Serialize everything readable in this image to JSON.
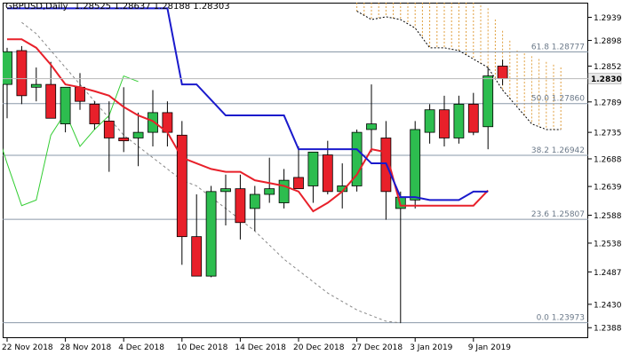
{
  "header": {
    "symbol": "GBPUSD,Daily",
    "ohlc": "1.28525 1.28637 1.28188 1.28303"
  },
  "chart_data": {
    "type": "candlestick",
    "symbol": "GBPUSD",
    "timeframe": "Daily",
    "ylim": [
      1.237,
      1.2965
    ],
    "current_price": 1.28303,
    "y_ticks": [
      1.2939,
      1.2898,
      1.28525,
      1.2789,
      1.2735,
      1.2688,
      1.2639,
      1.2588,
      1.25385,
      1.24875,
      1.243,
      1.23885
    ],
    "x_labels": [
      {
        "label": "22 Nov 2018",
        "index": 0
      },
      {
        "label": "28 Nov 2018",
        "index": 4
      },
      {
        "label": "4 Dec 2018",
        "index": 8
      },
      {
        "label": "10 Dec 2018",
        "index": 12
      },
      {
        "label": "14 Dec 2018",
        "index": 16
      },
      {
        "label": "20 Dec 2018",
        "index": 20
      },
      {
        "label": "27 Dec 2018",
        "index": 24
      },
      {
        "label": "3 Jan 2019",
        "index": 28
      },
      {
        "label": "9 Jan 2019",
        "index": 32
      }
    ],
    "fib_levels": [
      {
        "label": "61.8 1.28777",
        "value": 1.28777
      },
      {
        "label": "50.0 1.27860",
        "value": 1.2786
      },
      {
        "label": "38.2 1.26942",
        "value": 1.26942
      },
      {
        "label": "23.6 1.25807",
        "value": 1.25807
      },
      {
        "label": "0.0 1.23973",
        "value": 1.23973
      }
    ],
    "candles": [
      {
        "o": 1.282,
        "h": 1.2885,
        "l": 1.276,
        "c": 1.2878
      },
      {
        "o": 1.288,
        "h": 1.2888,
        "l": 1.2785,
        "c": 1.28
      },
      {
        "o": 1.2815,
        "h": 1.285,
        "l": 1.279,
        "c": 1.282
      },
      {
        "o": 1.282,
        "h": 1.286,
        "l": 1.276,
        "c": 1.276
      },
      {
        "o": 1.275,
        "h": 1.2815,
        "l": 1.2735,
        "c": 1.2815
      },
      {
        "o": 1.2815,
        "h": 1.284,
        "l": 1.2775,
        "c": 1.279
      },
      {
        "o": 1.2785,
        "h": 1.279,
        "l": 1.274,
        "c": 1.275
      },
      {
        "o": 1.2755,
        "h": 1.279,
        "l": 1.2665,
        "c": 1.2725
      },
      {
        "o": 1.2725,
        "h": 1.2815,
        "l": 1.27,
        "c": 1.272
      },
      {
        "o": 1.2725,
        "h": 1.277,
        "l": 1.2675,
        "c": 1.2735
      },
      {
        "o": 1.2735,
        "h": 1.281,
        "l": 1.271,
        "c": 1.277
      },
      {
        "o": 1.277,
        "h": 1.279,
        "l": 1.271,
        "c": 1.2735
      },
      {
        "o": 1.273,
        "h": 1.2755,
        "l": 1.25,
        "c": 1.255
      },
      {
        "o": 1.255,
        "h": 1.2625,
        "l": 1.248,
        "c": 1.248
      },
      {
        "o": 1.248,
        "h": 1.264,
        "l": 1.2478,
        "c": 1.263
      },
      {
        "o": 1.263,
        "h": 1.266,
        "l": 1.257,
        "c": 1.2635
      },
      {
        "o": 1.2635,
        "h": 1.266,
        "l": 1.2545,
        "c": 1.2575
      },
      {
        "o": 1.26,
        "h": 1.264,
        "l": 1.256,
        "c": 1.2625
      },
      {
        "o": 1.2625,
        "h": 1.269,
        "l": 1.261,
        "c": 1.2635
      },
      {
        "o": 1.261,
        "h": 1.267,
        "l": 1.26,
        "c": 1.265
      },
      {
        "o": 1.2655,
        "h": 1.271,
        "l": 1.2635,
        "c": 1.2635
      },
      {
        "o": 1.264,
        "h": 1.27,
        "l": 1.261,
        "c": 1.27
      },
      {
        "o": 1.2695,
        "h": 1.272,
        "l": 1.2625,
        "c": 1.263
      },
      {
        "o": 1.263,
        "h": 1.268,
        "l": 1.26,
        "c": 1.264
      },
      {
        "o": 1.264,
        "h": 1.274,
        "l": 1.263,
        "c": 1.2735
      },
      {
        "o": 1.274,
        "h": 1.282,
        "l": 1.27,
        "c": 1.275
      },
      {
        "o": 1.2725,
        "h": 1.2755,
        "l": 1.258,
        "c": 1.263
      },
      {
        "o": 1.26,
        "h": 1.263,
        "l": 1.2397,
        "c": 1.262
      },
      {
        "o": 1.2615,
        "h": 1.2755,
        "l": 1.26,
        "c": 1.274
      },
      {
        "o": 1.2735,
        "h": 1.2785,
        "l": 1.2715,
        "c": 1.2775
      },
      {
        "o": 1.2775,
        "h": 1.28,
        "l": 1.271,
        "c": 1.2725
      },
      {
        "o": 1.2725,
        "h": 1.28,
        "l": 1.2715,
        "c": 1.2785
      },
      {
        "o": 1.2785,
        "h": 1.2805,
        "l": 1.273,
        "c": 1.2735
      },
      {
        "o": 1.2745,
        "h": 1.285,
        "l": 1.2705,
        "c": 1.2835
      },
      {
        "o": 1.28525,
        "h": 1.28637,
        "l": 1.28188,
        "c": 1.28303
      }
    ],
    "red_line": [
      {
        "i": 0,
        "v": 1.29
      },
      {
        "i": 1,
        "v": 1.29
      },
      {
        "i": 2,
        "v": 1.2885
      },
      {
        "i": 3,
        "v": 1.2855
      },
      {
        "i": 4,
        "v": 1.282
      },
      {
        "i": 5,
        "v": 1.2815
      },
      {
        "i": 6,
        "v": 1.2808
      },
      {
        "i": 7,
        "v": 1.28
      },
      {
        "i": 8,
        "v": 1.278
      },
      {
        "i": 9,
        "v": 1.2765
      },
      {
        "i": 10,
        "v": 1.2755
      },
      {
        "i": 11,
        "v": 1.2735
      },
      {
        "i": 12,
        "v": 1.269
      },
      {
        "i": 13,
        "v": 1.268
      },
      {
        "i": 14,
        "v": 1.267
      },
      {
        "i": 15,
        "v": 1.2665
      },
      {
        "i": 16,
        "v": 1.2665
      },
      {
        "i": 17,
        "v": 1.265
      },
      {
        "i": 18,
        "v": 1.2645
      },
      {
        "i": 19,
        "v": 1.264
      },
      {
        "i": 20,
        "v": 1.263
      },
      {
        "i": 21,
        "v": 1.2595
      },
      {
        "i": 22,
        "v": 1.261
      },
      {
        "i": 23,
        "v": 1.263
      },
      {
        "i": 24,
        "v": 1.266
      },
      {
        "i": 25,
        "v": 1.2705
      },
      {
        "i": 26,
        "v": 1.27
      },
      {
        "i": 27,
        "v": 1.2605
      },
      {
        "i": 28,
        "v": 1.2605
      },
      {
        "i": 29,
        "v": 1.2605
      },
      {
        "i": 30,
        "v": 1.2605
      },
      {
        "i": 31,
        "v": 1.2605
      },
      {
        "i": 32,
        "v": 1.2605
      },
      {
        "i": 33,
        "v": 1.2632
      }
    ],
    "blue_line": [
      {
        "i": 0,
        "v": 1.2955
      },
      {
        "i": 11,
        "v": 1.2955
      },
      {
        "i": 12,
        "v": 1.282
      },
      {
        "i": 13,
        "v": 1.282
      },
      {
        "i": 15,
        "v": 1.2765
      },
      {
        "i": 19,
        "v": 1.2765
      },
      {
        "i": 20,
        "v": 1.2705
      },
      {
        "i": 24,
        "v": 1.2705
      },
      {
        "i": 25,
        "v": 1.268
      },
      {
        "i": 26,
        "v": 1.268
      },
      {
        "i": 27,
        "v": 1.262
      },
      {
        "i": 28,
        "v": 1.262
      },
      {
        "i": 29,
        "v": 1.2615
      },
      {
        "i": 31,
        "v": 1.2615
      },
      {
        "i": 32,
        "v": 1.263
      },
      {
        "i": 33,
        "v": 1.263
      }
    ],
    "green_line": [
      {
        "i": -1,
        "v": 1.276
      },
      {
        "i": 0,
        "v": 1.268
      },
      {
        "i": 1,
        "v": 1.2605
      },
      {
        "i": 2,
        "v": 1.2615
      },
      {
        "i": 3,
        "v": 1.273
      },
      {
        "i": 4,
        "v": 1.277
      },
      {
        "i": 5,
        "v": 1.271
      },
      {
        "i": 6,
        "v": 1.274
      },
      {
        "i": 7,
        "v": 1.2765
      },
      {
        "i": 8,
        "v": 1.2835
      },
      {
        "i": 9,
        "v": 1.2825
      }
    ],
    "dashed_line": [
      {
        "i": 1,
        "v": 1.293
      },
      {
        "i": 2,
        "v": 1.291
      },
      {
        "i": 3,
        "v": 1.288
      },
      {
        "i": 4,
        "v": 1.285
      },
      {
        "i": 5,
        "v": 1.282
      },
      {
        "i": 6,
        "v": 1.279
      },
      {
        "i": 7,
        "v": 1.276
      },
      {
        "i": 8,
        "v": 1.273
      },
      {
        "i": 9,
        "v": 1.271
      },
      {
        "i": 10,
        "v": 1.269
      },
      {
        "i": 11,
        "v": 1.267
      },
      {
        "i": 12,
        "v": 1.265
      },
      {
        "i": 13,
        "v": 1.264
      },
      {
        "i": 14,
        "v": 1.262
      },
      {
        "i": 15,
        "v": 1.26
      },
      {
        "i": 16,
        "v": 1.258
      },
      {
        "i": 17,
        "v": 1.256
      },
      {
        "i": 18,
        "v": 1.2535
      },
      {
        "i": 19,
        "v": 1.251
      },
      {
        "i": 20,
        "v": 1.249
      },
      {
        "i": 21,
        "v": 1.247
      },
      {
        "i": 22,
        "v": 1.245
      },
      {
        "i": 23,
        "v": 1.2435
      },
      {
        "i": 24,
        "v": 1.242
      },
      {
        "i": 25,
        "v": 1.241
      },
      {
        "i": 26,
        "v": 1.24
      },
      {
        "i": 27,
        "v": 1.2397
      }
    ],
    "cloud_top": [
      {
        "i": 24,
        "v": 1.2965
      },
      {
        "i": 32,
        "v": 1.2965
      },
      {
        "i": 33,
        "v": 1.2955
      },
      {
        "i": 34,
        "v": 1.2915
      },
      {
        "i": 35,
        "v": 1.288
      },
      {
        "i": 36,
        "v": 1.287
      },
      {
        "i": 37,
        "v": 1.286
      },
      {
        "i": 38,
        "v": 1.285
      }
    ],
    "cloud_bottom": [
      {
        "i": 24,
        "v": 1.295
      },
      {
        "i": 25,
        "v": 1.2935
      },
      {
        "i": 26,
        "v": 1.294
      },
      {
        "i": 27,
        "v": 1.2935
      },
      {
        "i": 28,
        "v": 1.292
      },
      {
        "i": 29,
        "v": 1.2885
      },
      {
        "i": 30,
        "v": 1.2885
      },
      {
        "i": 31,
        "v": 1.288
      },
      {
        "i": 32,
        "v": 1.2865
      },
      {
        "i": 33,
        "v": 1.285
      },
      {
        "i": 34,
        "v": 1.281
      },
      {
        "i": 35,
        "v": 1.278
      },
      {
        "i": 36,
        "v": 1.275
      },
      {
        "i": 37,
        "v": 1.274
      },
      {
        "i": 38,
        "v": 1.274
      }
    ],
    "colors": {
      "bull": "#2dbd4f",
      "bear": "#e8202a",
      "red_line": "#e8202a",
      "blue_line": "#1a1acc",
      "green_line": "#32cd32",
      "cloud": "#e0a040",
      "fib": "#8a98a8",
      "current_price_box": "#e8e8e8"
    }
  }
}
